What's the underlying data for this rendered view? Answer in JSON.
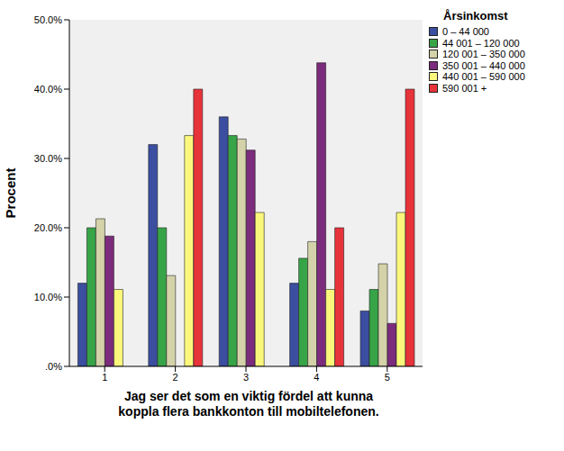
{
  "chart_data": {
    "type": "bar",
    "x_label": [
      "Jag ser det som en viktig fördel att kunna",
      "koppla flera bankkonton till mobiltelefonen."
    ],
    "y_label": "Procent",
    "legend_title": "Årsinkomst",
    "legend": "right",
    "grid": false,
    "categories": [
      "1",
      "2",
      "3",
      "4",
      "5"
    ],
    "ylim": [
      0,
      50
    ],
    "yticks": [
      {
        "value": 0,
        "label": ".0%"
      },
      {
        "value": 10,
        "label": "10.0%"
      },
      {
        "value": 20,
        "label": "20.0%"
      },
      {
        "value": 30,
        "label": "30.0%"
      },
      {
        "value": 40,
        "label": "40.0%"
      },
      {
        "value": 50,
        "label": "50.0%"
      }
    ],
    "series": [
      {
        "name": "0 – 44 000",
        "color": "#3b4ea0",
        "values": [
          12,
          32,
          36,
          12,
          8
        ]
      },
      {
        "name": "44 001 – 120 000",
        "color": "#37a448",
        "values": [
          20,
          20,
          33.3,
          15.6,
          11.1
        ]
      },
      {
        "name": "120 001 – 350 000",
        "color": "#d3d2a9",
        "values": [
          21.3,
          13.1,
          32.8,
          18,
          14.8
        ]
      },
      {
        "name": "350 001 – 440 000",
        "color": "#7b2c7c",
        "values": [
          18.8,
          0,
          31.2,
          43.8,
          6.2
        ]
      },
      {
        "name": "440 001 – 590 000",
        "color": "#fbf77c",
        "values": [
          11.1,
          33.3,
          22.2,
          11.1,
          22.2
        ]
      },
      {
        "name": "590 001 +",
        "color": "#e7333a",
        "values": [
          0,
          40,
          0,
          20,
          40
        ]
      }
    ]
  }
}
